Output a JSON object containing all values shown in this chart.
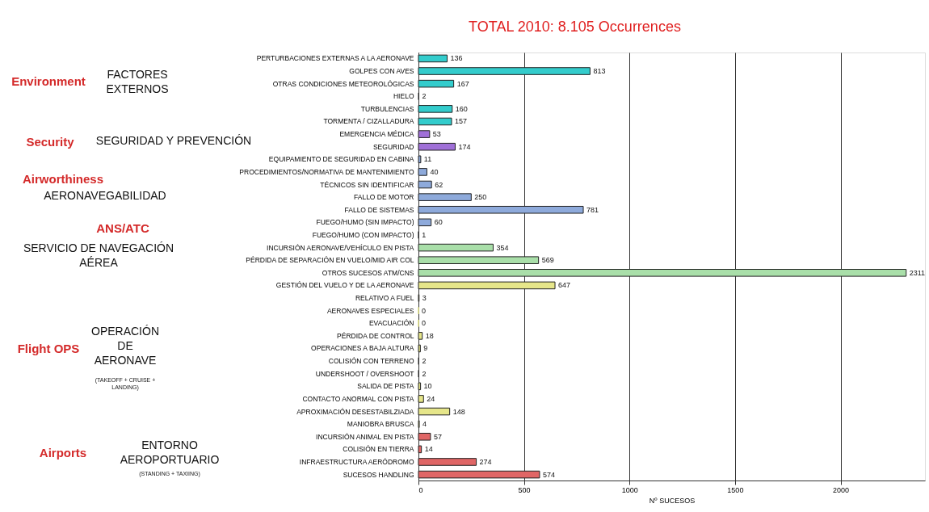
{
  "chart_data": {
    "type": "bar",
    "orientation": "horizontal",
    "title": "TOTAL 2010: 8.105 Occurrences",
    "xlabel": "Nº SUCESOS",
    "categories": [
      "PERTURBACIONES EXTERNAS A LA AERONAVE",
      "GOLPES CON AVES",
      "OTRAS CONDICIONES METEOROLÓGICAS",
      "HIELO",
      "TURBULENCIAS",
      "TORMENTA / CIZALLADURA",
      "EMERGENCIA MÉDICA",
      "SEGURIDAD",
      "EQUIPAMIENTO DE SEGURIDAD EN CABINA",
      "PROCEDIMIENTOS/NORMATIVA DE MANTENIMIENTO",
      "TÉCNICOS SIN IDENTIFICAR",
      "FALLO DE MOTOR",
      "FALLO DE SISTEMAS",
      "FUEGO/HUMO (SIN IMPACTO)",
      "FUEGO/HUMO (CON IMPACTO)",
      "INCURSIÓN AERONAVE/VEHÍCULO EN PISTA",
      "PÉRDIDA DE SEPARACIÓN EN VUELO/MID AIR COL",
      "OTROS SUCESOS ATM/CNS",
      "GESTIÓN DEL VUELO Y DE LA AERONAVE",
      "RELATIVO A FUEL",
      "AERONAVES ESPECIALES",
      "EVACUACIÓN",
      "PÉRDIDA DE CONTROL",
      "OPERACIONES A BAJA ALTURA",
      "COLISIÓN CON TERRENO",
      "UNDERSHOOT / OVERSHOOT",
      "SALIDA DE PISTA",
      "CONTACTO ANORMAL CON PISTA",
      "APROXIMACIÓN DESESTABILZIADA",
      "MANIOBRA BRUSCA",
      "INCURSIÓN ANIMAL EN PISTA",
      "COLISIÓN EN TIERRA",
      "INFRAESTRUCTURA AERÓDROMO",
      "SUCESOS HANDLING"
    ],
    "values": [
      136,
      813,
      167,
      2,
      160,
      157,
      53,
      174,
      11,
      40,
      62,
      250,
      781,
      60,
      1,
      354,
      569,
      2311,
      647,
      3,
      0,
      0,
      18,
      9,
      2,
      2,
      10,
      24,
      148,
      4,
      57,
      14,
      274,
      574
    ],
    "colors": [
      "#33cccc",
      "#33cccc",
      "#33cccc",
      "#33cccc",
      "#33cccc",
      "#33cccc",
      "#a070d8",
      "#a070d8",
      "#8eaadb",
      "#8eaadb",
      "#8eaadb",
      "#8eaadb",
      "#8eaadb",
      "#8eaadb",
      "#8eaadb",
      "#a9dfa9",
      "#a9dfa9",
      "#a9dfa9",
      "#e6e68a",
      "#e6e68a",
      "#e6e68a",
      "#e6e68a",
      "#e6e68a",
      "#e6e68a",
      "#e6e68a",
      "#e6e68a",
      "#e6e68a",
      "#e6e68a",
      "#e6e68a",
      "#e6e68a",
      "#e06666",
      "#e06666",
      "#e06666",
      "#e06666"
    ],
    "xlim": [
      0,
      2400
    ],
    "xticks": [
      0,
      500,
      1000,
      1500,
      2000
    ],
    "grid": "x",
    "data_labels": true,
    "annotations": [
      "Environment",
      "FACTORES EXTERNOS",
      "Security",
      "SEGURIDAD Y PREVENCIÓN",
      "Airworthiness",
      "AERONAVEGABILIDAD",
      "ANS/ATC",
      "SERVICIO DE NAVEGACIÓN AÉREA",
      "Flight OPS",
      "OPERACIÓN DE AERONAVE",
      "(TAKEOFF + CRUISE + LANDING)",
      "Airports",
      "ENTORNO AEROPORTUARIO",
      "(STANDING + TAXIING)"
    ]
  }
}
